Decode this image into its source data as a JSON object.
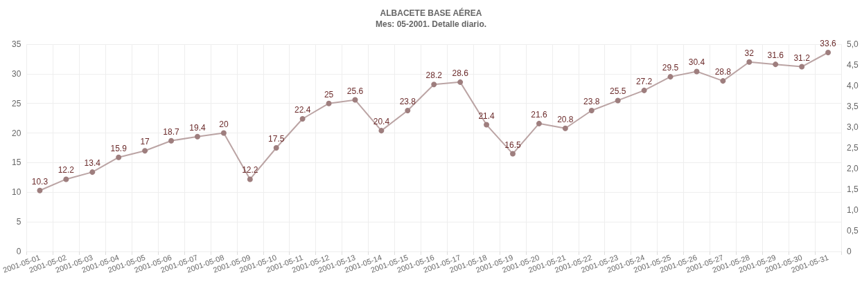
{
  "chart_data": {
    "type": "line",
    "title": "ALBACETE BASE AÉREA",
    "subtitle": "Mes: 05-2001. Detalle diario.",
    "categories": [
      "2001-05-01",
      "2001-05-02",
      "2001-05-03",
      "2001-05-04",
      "2001-05-05",
      "2001-05-06",
      "2001-05-07",
      "2001-05-08",
      "2001-05-09",
      "2001-05-10",
      "2001-05-11",
      "2001-05-12",
      "2001-05-13",
      "2001-05-14",
      "2001-05-15",
      "2001-05-16",
      "2001-05-17",
      "2001-05-18",
      "2001-05-19",
      "2001-05-20",
      "2001-05-21",
      "2001-05-22",
      "2001-05-23",
      "2001-05-24",
      "2001-05-25",
      "2001-05-26",
      "2001-05-27",
      "2001-05-28",
      "2001-05-29",
      "2001-05-30",
      "2001-05-31"
    ],
    "series": [
      {
        "color": "#9e7e7e",
        "values": [
          10.3,
          12.2,
          13.4,
          15.9,
          17,
          18.7,
          19.4,
          20,
          12.2,
          17.5,
          22.4,
          25,
          25.6,
          20.4,
          23.8,
          28.2,
          28.6,
          21.4,
          16.5,
          21.6,
          20.8,
          23.8,
          25.5,
          27.2,
          29.5,
          30.4,
          28.8,
          32,
          31.6,
          31.2,
          33.6
        ]
      }
    ],
    "ylim": [
      0,
      35
    ],
    "yticks": [
      0,
      5,
      10,
      15,
      20,
      25,
      30,
      35
    ],
    "y2lim": [
      0,
      5
    ],
    "y2ticks": [
      0,
      {
        "value": 0.5,
        "label": "0,5"
      },
      {
        "value": 1,
        "label": "1,0"
      },
      {
        "value": 1.5,
        "label": "1,5"
      },
      {
        "value": 2,
        "label": "2,0"
      },
      {
        "value": 2.5,
        "label": "2,5"
      },
      {
        "value": 3,
        "label": "3,0"
      },
      {
        "value": 3.5,
        "label": "3,5"
      },
      {
        "value": 4,
        "label": "4,0"
      },
      {
        "value": 4.5,
        "label": "4,5"
      },
      {
        "value": 5,
        "label": "5,0"
      }
    ],
    "grid": true,
    "data_labels": true,
    "marker": "circle",
    "line_style": "solid"
  }
}
